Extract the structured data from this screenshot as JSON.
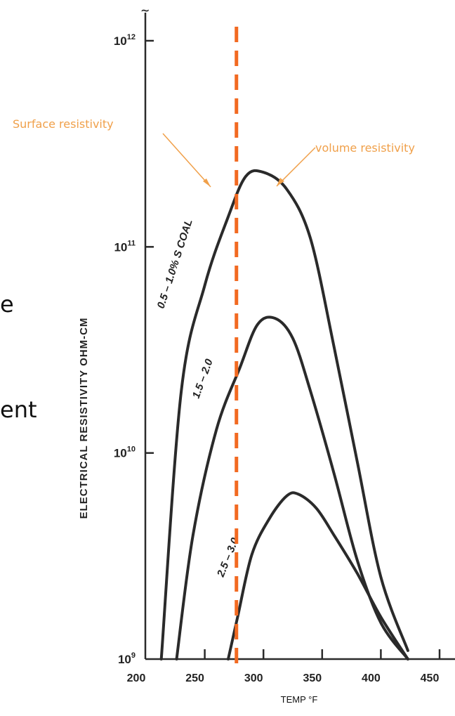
{
  "background_fragments": [
    "e",
    "ent"
  ],
  "chart_data": {
    "type": "line",
    "title": "",
    "xlabel": "TEMP °F",
    "ylabel": "ELECTRICAL RESISTIVITY OHM-CM",
    "xlim": [
      200,
      450
    ],
    "ylim_log10": [
      9,
      12
    ],
    "y_scale": "log",
    "x_ticks": [
      200,
      250,
      300,
      350,
      400,
      450
    ],
    "y_ticks": [
      {
        "base": "10",
        "exp": "9",
        "value": 1000000000.0
      },
      {
        "base": "10",
        "exp": "10",
        "value": 10000000000.0
      },
      {
        "base": "10",
        "exp": "11",
        "value": 100000000000.0
      },
      {
        "base": "10",
        "exp": "12",
        "value": 1000000000000.0
      }
    ],
    "series": [
      {
        "name": "0.5 – 1.0% S COAL",
        "x": [
          213,
          230,
          250,
          270,
          285,
          300,
          320,
          340,
          360,
          380,
          400,
          423
        ],
        "y": [
          1000000000.0,
          20000000000.0,
          65000000000.0,
          140000000000.0,
          220000000000.0,
          230000000000.0,
          190000000000.0,
          110000000000.0,
          33000000000.0,
          9000000000.0,
          2500000000.0,
          1100000000.0
        ]
      },
      {
        "name": "1.5 – 2.0",
        "x": [
          226,
          240,
          260,
          280,
          295,
          310,
          325,
          340,
          360,
          380,
          400,
          423
        ],
        "y": [
          1000000000.0,
          4000000000.0,
          13000000000.0,
          26000000000.0,
          42000000000.0,
          45000000000.0,
          36000000000.0,
          20000000000.0,
          8000000000.0,
          3000000000.0,
          1500000000.0,
          1000000000.0
        ]
      },
      {
        "name": "2.5 – 3.0",
        "x": [
          270,
          278,
          290,
          305,
          320,
          330,
          345,
          360,
          380,
          400,
          423
        ],
        "y": [
          1000000000.0,
          1600000000.0,
          3200000000.0,
          4800000000.0,
          6200000000.0,
          6300000000.0,
          5400000000.0,
          4000000000.0,
          2600000000.0,
          1600000000.0,
          1000000000.0
        ]
      }
    ],
    "reference_line": {
      "x": 277,
      "color": "#f26a21",
      "style": "dashed"
    },
    "annotations": [
      {
        "text": "Surface resistivity",
        "color": "#f0a04a"
      },
      {
        "text": "volume resistivity",
        "color": "#f0a04a"
      }
    ],
    "grid": false
  }
}
